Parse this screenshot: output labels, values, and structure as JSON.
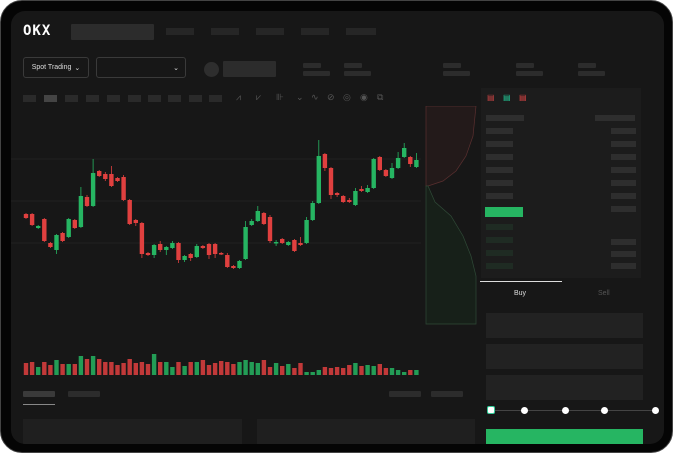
{
  "header": {
    "logo": "OKX",
    "nav_items": 5
  },
  "market_bar": {
    "mode_label": "Spot Trading",
    "pair_select_value": ""
  },
  "order_form": {
    "tabs": [
      {
        "label": "Buy",
        "active": true
      },
      {
        "label": "Sell",
        "active": false
      }
    ],
    "leverage_steps": 5,
    "leverage_selected": 0
  },
  "colors": {
    "up": "#26b562",
    "down": "#e0403f",
    "background": "#171717",
    "accent": "#26b562"
  },
  "chart": {
    "candles": [
      [
        67,
        68,
        62,
        63
      ],
      [
        67,
        68,
        55,
        56
      ],
      [
        53,
        56,
        52,
        55
      ],
      [
        62,
        63,
        39,
        40
      ],
      [
        38,
        39,
        33,
        34
      ],
      [
        31,
        47,
        27,
        46
      ],
      [
        48,
        49,
        39,
        40
      ],
      [
        44,
        63,
        43,
        62
      ],
      [
        61,
        62,
        52,
        53
      ],
      [
        54,
        94,
        53,
        85
      ],
      [
        84,
        86,
        74,
        75
      ],
      [
        75,
        122,
        74,
        108
      ],
      [
        110,
        111,
        104,
        105
      ],
      [
        107,
        109,
        100,
        102
      ],
      [
        107,
        115,
        94,
        95
      ],
      [
        103,
        104,
        99,
        100
      ],
      [
        104,
        106,
        80,
        81
      ],
      [
        81,
        82,
        56,
        57
      ],
      [
        61,
        62,
        55,
        58
      ],
      [
        58,
        59,
        23,
        27
      ],
      [
        28,
        29,
        25,
        26
      ],
      [
        26,
        37,
        23,
        36
      ],
      [
        37,
        40,
        29,
        31
      ],
      [
        31,
        35,
        26,
        34
      ],
      [
        33,
        40,
        32,
        38
      ],
      [
        38,
        39,
        18,
        21
      ],
      [
        21,
        26,
        19,
        25
      ],
      [
        27,
        28,
        20,
        23
      ],
      [
        24,
        37,
        23,
        35
      ],
      [
        35,
        36,
        32,
        33
      ],
      [
        37,
        38,
        22,
        26
      ],
      [
        37,
        38,
        23,
        27
      ],
      [
        28,
        29,
        26,
        27
      ],
      [
        26,
        28,
        13,
        14
      ],
      [
        15,
        16,
        12,
        13
      ],
      [
        13,
        21,
        12,
        20
      ],
      [
        22,
        60,
        21,
        54
      ],
      [
        56,
        62,
        55,
        60
      ],
      [
        60,
        75,
        59,
        70
      ],
      [
        68,
        69,
        56,
        57
      ],
      [
        64,
        66,
        38,
        40
      ],
      [
        38,
        41,
        35,
        39
      ],
      [
        42,
        43,
        37,
        38
      ],
      [
        36,
        40,
        35,
        39
      ],
      [
        41,
        42,
        29,
        30
      ],
      [
        38,
        44,
        35,
        36
      ],
      [
        38,
        64,
        37,
        61
      ],
      [
        61,
        80,
        60,
        78
      ],
      [
        78,
        141,
        77,
        125
      ],
      [
        127,
        128,
        110,
        113
      ],
      [
        113,
        114,
        82,
        86
      ],
      [
        88,
        89,
        84,
        86
      ],
      [
        85,
        86,
        78,
        79
      ],
      [
        81,
        83,
        78,
        79
      ],
      [
        76,
        93,
        75,
        90
      ],
      [
        92,
        95,
        89,
        90
      ],
      [
        89,
        96,
        88,
        93
      ],
      [
        93,
        123,
        92,
        122
      ],
      [
        124,
        125,
        110,
        111
      ],
      [
        111,
        112,
        104,
        105
      ],
      [
        103,
        118,
        102,
        113
      ],
      [
        113,
        129,
        112,
        123
      ],
      [
        124,
        138,
        123,
        133
      ],
      [
        124,
        125,
        114,
        117
      ],
      [
        114,
        128,
        113,
        121
      ]
    ],
    "volumes": [
      12,
      13,
      8,
      13,
      10,
      15,
      11,
      11,
      11,
      19,
      16,
      19,
      16,
      13,
      13,
      10,
      12,
      16,
      12,
      13,
      11,
      21,
      13,
      13,
      8,
      13,
      9,
      13,
      13,
      15,
      10,
      12,
      14,
      13,
      11,
      13,
      15,
      13,
      12,
      15,
      8,
      12,
      9,
      11,
      7,
      12,
      3,
      3,
      5,
      8,
      7,
      8,
      7,
      10,
      12,
      9,
      10,
      9,
      11,
      7,
      7,
      5,
      3,
      5,
      5
    ]
  }
}
